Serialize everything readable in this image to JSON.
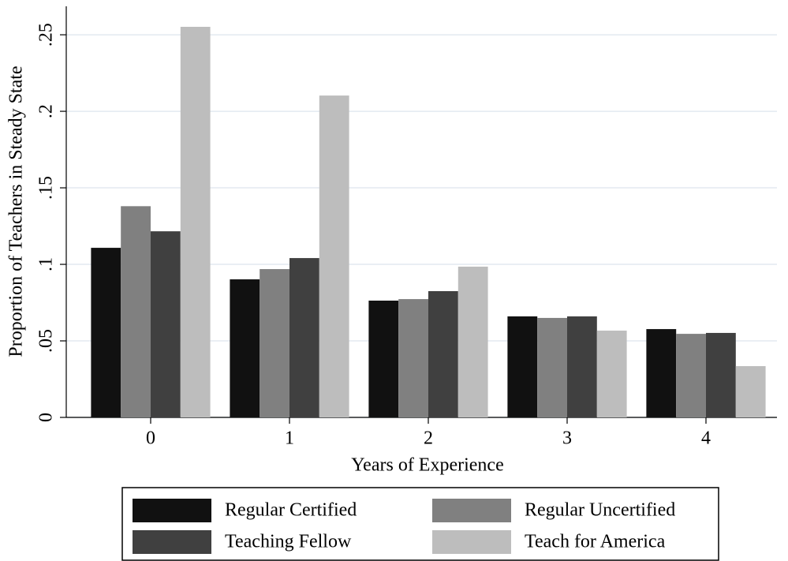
{
  "chart_data": {
    "type": "bar",
    "x_label": "Years of Experience",
    "y_label": "Proportion of Teachers in Steady State",
    "categories": [
      "0",
      "1",
      "2",
      "3",
      "4"
    ],
    "series": [
      {
        "name": "Regular Certified",
        "color": "#111111",
        "values": [
          0.1108,
          0.0902,
          0.0763,
          0.066,
          0.0577
        ]
      },
      {
        "name": "Regular Uncertified",
        "color": "#808080",
        "values": [
          0.138,
          0.0969,
          0.0773,
          0.065,
          0.0546
        ]
      },
      {
        "name": "Teaching Fellow",
        "color": "#404040",
        "values": [
          0.1216,
          0.1041,
          0.0825,
          0.066,
          0.0552
        ]
      },
      {
        "name": "Teach for America",
        "color": "#bdbdbd",
        "values": [
          0.2552,
          0.2103,
          0.0985,
          0.0567,
          0.0335
        ]
      }
    ],
    "ylim": [
      0,
      0.2686
    ],
    "yticks": [
      0,
      {
        "value": 0.05,
        "label": ".05"
      },
      {
        "value": 0.1,
        "label": ".1"
      },
      {
        "value": 0.15,
        "label": ".15"
      },
      {
        "value": 0.2,
        "label": ".2"
      },
      {
        "value": 0.25,
        "label": ".25"
      }
    ],
    "grid": true
  }
}
